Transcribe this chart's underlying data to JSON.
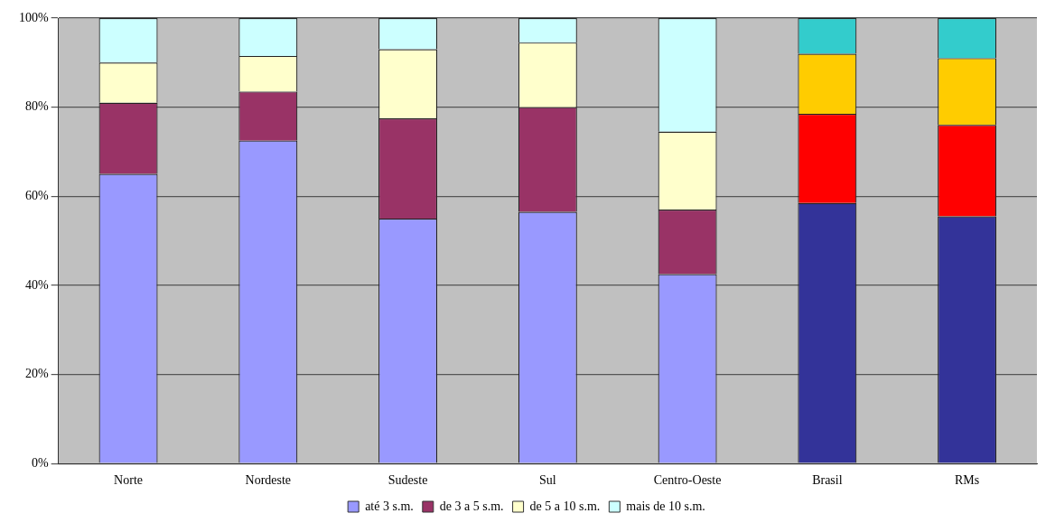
{
  "chart_data": {
    "type": "bar",
    "stacked": true,
    "categories": [
      "Norte",
      "Nordeste",
      "Sudeste",
      "Sul",
      "Centro-Oeste",
      "Brasil",
      "RMs"
    ],
    "series": [
      {
        "name": "até 3 s.m.",
        "color": "#9999ff",
        "colors": [
          "#9999ff",
          "#9999ff",
          "#9999ff",
          "#9999ff",
          "#9999ff",
          "#333399",
          "#333399"
        ],
        "values": [
          65,
          72.5,
          55,
          56.5,
          42.5,
          58.5,
          55.5
        ]
      },
      {
        "name": "de 3 a 5 s.m.",
        "color": "#993366",
        "colors": [
          "#993366",
          "#993366",
          "#993366",
          "#993366",
          "#993366",
          "#ff0000",
          "#ff0000"
        ],
        "values": [
          16,
          11,
          22.5,
          23.5,
          14.5,
          20,
          20.5
        ]
      },
      {
        "name": "de 5 a 10 s.m.",
        "color": "#ffffcc",
        "colors": [
          "#ffffcc",
          "#ffffcc",
          "#ffffcc",
          "#ffffcc",
          "#ffffcc",
          "#ffcc00",
          "#ffcc00"
        ],
        "values": [
          9,
          8,
          15.5,
          14.5,
          17.5,
          13.5,
          15
        ]
      },
      {
        "name": "mais de 10 s.m.",
        "color": "#ccffff",
        "colors": [
          "#ccffff",
          "#ccffff",
          "#ccffff",
          "#ccffff",
          "#ccffff",
          "#33cccc",
          "#33cccc"
        ],
        "values": [
          10,
          8.5,
          7,
          5.5,
          25.5,
          8,
          9
        ]
      }
    ],
    "ylim": [
      0,
      100
    ],
    "yticks": [
      {
        "value": 0,
        "label": "0%"
      },
      {
        "value": 20,
        "label": "20%"
      },
      {
        "value": 40,
        "label": "40%"
      },
      {
        "value": 60,
        "label": "60%"
      },
      {
        "value": 80,
        "label": "80%"
      },
      {
        "value": 100,
        "label": "100%"
      }
    ],
    "grid": "y",
    "legend": "bottom"
  }
}
